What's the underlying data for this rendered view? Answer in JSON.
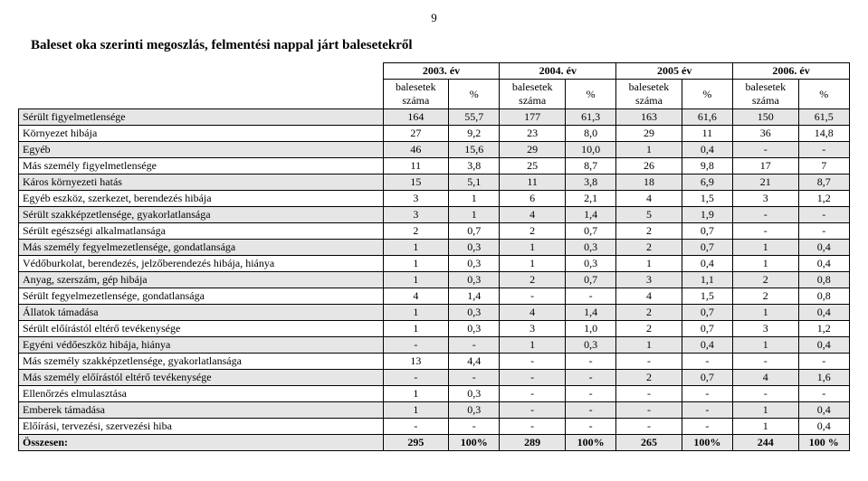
{
  "page_number": "9",
  "title": "Baleset oka szerinti megoszlás, felmentési nappal járt balesetekről",
  "years": [
    "2003. év",
    "2004. év",
    "2005 év",
    "2006. év"
  ],
  "subheaders": {
    "count": "balesetek száma",
    "pct": "%"
  },
  "rows": [
    {
      "label": "Sérült figyelmetlensége",
      "cells": [
        "164",
        "55,7",
        "177",
        "61,3",
        "163",
        "61,6",
        "150",
        "61,5"
      ],
      "shade": true
    },
    {
      "label": "Környezet hibája",
      "cells": [
        "27",
        "9,2",
        "23",
        "8,0",
        "29",
        "11",
        "36",
        "14,8"
      ],
      "shade": false
    },
    {
      "label": "Egyéb",
      "cells": [
        "46",
        "15,6",
        "29",
        "10,0",
        "1",
        "0,4",
        "-",
        "-"
      ],
      "shade": true
    },
    {
      "label": "Más személy figyelmetlensége",
      "cells": [
        "11",
        "3,8",
        "25",
        "8,7",
        "26",
        "9,8",
        "17",
        "7"
      ],
      "shade": false
    },
    {
      "label": "Káros környezeti hatás",
      "cells": [
        "15",
        "5,1",
        "11",
        "3,8",
        "18",
        "6,9",
        "21",
        "8,7"
      ],
      "shade": true
    },
    {
      "label": "Egyéb eszköz, szerkezet, berendezés hibája",
      "cells": [
        "3",
        "1",
        "6",
        "2,1",
        "4",
        "1,5",
        "3",
        "1,2"
      ],
      "shade": false
    },
    {
      "label": "Sérült szakképzetlensége, gyakorlatlansága",
      "cells": [
        "3",
        "1",
        "4",
        "1,4",
        "5",
        "1,9",
        "-",
        "-"
      ],
      "shade": true
    },
    {
      "label": "Sérült egészségi alkalmatlansága",
      "cells": [
        "2",
        "0,7",
        "2",
        "0,7",
        "2",
        "0,7",
        "-",
        "-"
      ],
      "shade": false
    },
    {
      "label": "Más személy fegyelmezetlensége, gondatlansága",
      "cells": [
        "1",
        "0,3",
        "1",
        "0,3",
        "2",
        "0,7",
        "1",
        "0,4"
      ],
      "shade": true
    },
    {
      "label": "Védőburkolat, berendezés, jelzőberendezés hibája, hiánya",
      "cells": [
        "1",
        "0,3",
        "1",
        "0,3",
        "1",
        "0,4",
        "1",
        "0,4"
      ],
      "shade": false
    },
    {
      "label": "Anyag, szerszám, gép hibája",
      "cells": [
        "1",
        "0,3",
        "2",
        "0,7",
        "3",
        "1,1",
        "2",
        "0,8"
      ],
      "shade": true
    },
    {
      "label": "Sérült fegyelmezetlensége, gondatlansága",
      "cells": [
        "4",
        "1,4",
        "-",
        "-",
        "4",
        "1,5",
        "2",
        "0,8"
      ],
      "shade": false
    },
    {
      "label": "Állatok támadása",
      "cells": [
        "1",
        "0,3",
        "4",
        "1,4",
        "2",
        "0,7",
        "1",
        "0,4"
      ],
      "shade": true
    },
    {
      "label": "Sérült előírástól eltérő tevékenysége",
      "cells": [
        "1",
        "0,3",
        "3",
        "1,0",
        "2",
        "0,7",
        "3",
        "1,2"
      ],
      "shade": false
    },
    {
      "label": "Egyéni védőeszköz hibája, hiánya",
      "cells": [
        "-",
        "-",
        "1",
        "0,3",
        "1",
        "0,4",
        "1",
        "0,4"
      ],
      "shade": true
    },
    {
      "label": "Más személy szakképzetlensége, gyakorlatlansága",
      "cells": [
        "13",
        "4,4",
        "-",
        "-",
        "-",
        "-",
        "-",
        "-"
      ],
      "shade": false
    },
    {
      "label": "Más személy előírástól eltérő tevékenysége",
      "cells": [
        "-",
        "-",
        "-",
        "-",
        "2",
        "0,7",
        "4",
        "1,6"
      ],
      "shade": true
    },
    {
      "label": "Ellenőrzés elmulasztása",
      "cells": [
        "1",
        "0,3",
        "-",
        "-",
        "-",
        "-",
        "-",
        "-"
      ],
      "shade": false
    },
    {
      "label": "Emberek támadása",
      "cells": [
        "1",
        "0,3",
        "-",
        "-",
        "-",
        "-",
        "1",
        "0,4"
      ],
      "shade": true
    },
    {
      "label": "Előírási, tervezési, szervezési hiba",
      "cells": [
        "-",
        "-",
        "-",
        "-",
        "-",
        "-",
        "1",
        "0,4"
      ],
      "shade": false
    }
  ],
  "total": {
    "label": "Összesen:",
    "cells": [
      "295",
      "100%",
      "289",
      "100%",
      "265",
      "100%",
      "244",
      "100 %"
    ],
    "shade": true
  }
}
